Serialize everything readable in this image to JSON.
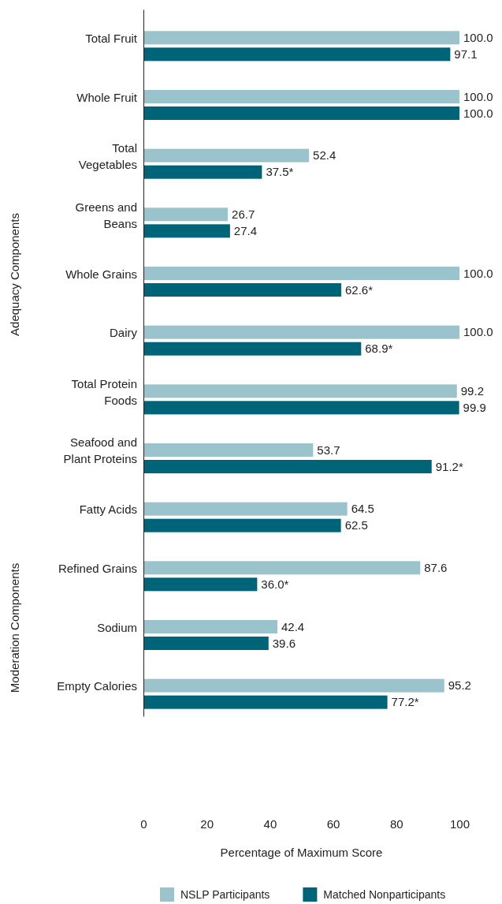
{
  "chart_data": {
    "type": "bar",
    "orientation": "horizontal",
    "xlabel": "Percentage of Maximum Score",
    "categories": [
      "Total Fruit",
      "Whole Fruit",
      "Total Vegetables",
      "Greens and Beans",
      "Whole Grains",
      "Dairy",
      "Total Protein Foods",
      "Seafood and Plant Proteins",
      "Fatty Acids",
      "Refined Grains",
      "Sodium",
      "Empty Calories"
    ],
    "series": [
      {
        "name": "Matched Nonparticipants",
        "color": "#006478",
        "values": [
          97.1,
          100.0,
          37.5,
          27.4,
          62.6,
          68.9,
          99.9,
          91.2,
          62.5,
          36.0,
          39.6,
          77.2
        ],
        "value_labels": [
          "97.1",
          "100.0",
          "37.5*",
          "27.4",
          "62.6*",
          "68.9*",
          "99.9",
          "91.2*",
          "62.5",
          "36.0*",
          "39.6",
          "77.2*"
        ]
      },
      {
        "name": "NSLP Participants",
        "color": "#9ac3cc",
        "values": [
          100.0,
          100.0,
          52.4,
          26.7,
          100.0,
          100.0,
          99.2,
          53.7,
          64.5,
          87.6,
          42.4,
          95.2
        ],
        "value_labels": [
          "100.0",
          "100.0",
          "52.4",
          "26.7",
          "100.0",
          "100.0",
          "99.2",
          "53.7",
          "64.5",
          "87.6",
          "42.4",
          "95.2"
        ]
      }
    ],
    "xlim": [
      0,
      100
    ],
    "xticks": [
      0,
      20,
      40,
      60,
      80,
      100
    ],
    "grid": false,
    "legend": "bottom",
    "annotations": [
      "Adequacy Components",
      "Moderation Components"
    ]
  }
}
